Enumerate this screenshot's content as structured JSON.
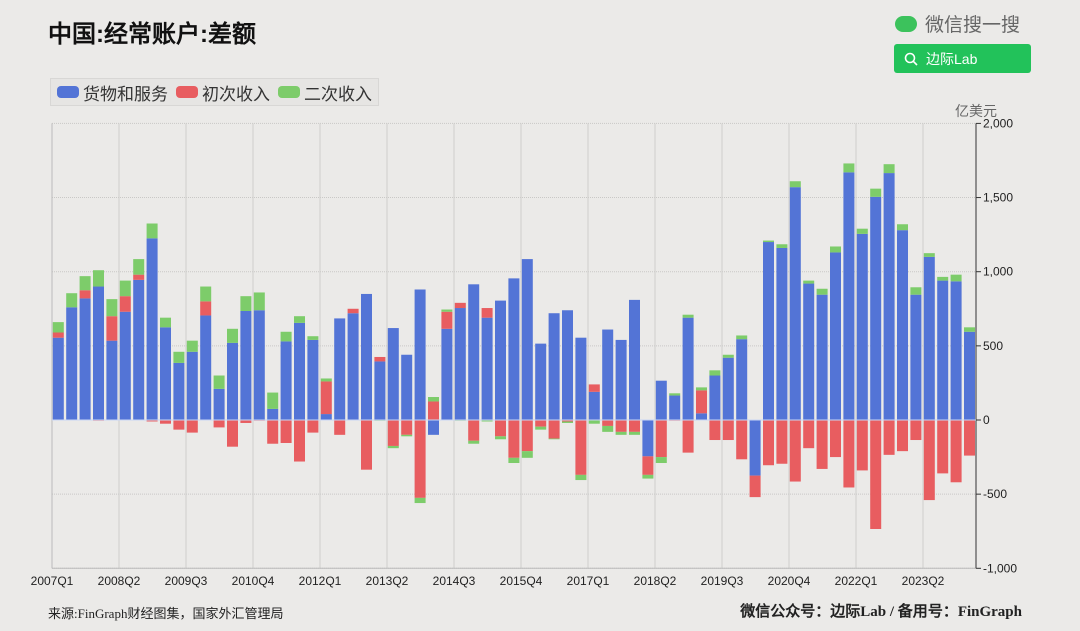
{
  "header": {
    "title": "中国:经常账户:差额"
  },
  "watermark": {
    "wechat_label": "微信搜一搜",
    "search_label": "边际Lab",
    "icon": "wechat-icon"
  },
  "footer": {
    "source": "来源:FinGraph财经图集，国家外汇管理局",
    "account": "微信公众号：边际Lab / 备用号：FinGraph"
  },
  "chart_data": {
    "type": "bar",
    "stacked": true,
    "title": "中国:经常账户:差额",
    "unit": "亿美元",
    "ylim": [
      -1000,
      2000
    ],
    "yticks": [
      "2,000",
      "1,500",
      "1,000",
      "500",
      "0",
      "-500",
      "-1,000"
    ],
    "ytick_values": [
      2000,
      1500,
      1000,
      500,
      0,
      -500,
      -1000
    ],
    "xtick_labels": [
      "2007Q1",
      "2008Q2",
      "2009Q3",
      "2010Q4",
      "2012Q1",
      "2013Q2",
      "2014Q3",
      "2015Q4",
      "2017Q1",
      "2018Q2",
      "2019Q3",
      "2020Q4",
      "2022Q1",
      "2023Q2"
    ],
    "grid": true,
    "legend_position": "top-left",
    "categories_start": "2007Q1",
    "categories_end": "2024Q1",
    "series": [
      {
        "name": "货物和服务",
        "color": "#5374d6",
        "values": [
          555,
          760,
          820,
          900,
          535,
          730,
          945,
          1225,
          625,
          385,
          460,
          705,
          210,
          520,
          735,
          740,
          75,
          530,
          655,
          540,
          40,
          685,
          720,
          850,
          395,
          620,
          440,
          880,
          -100,
          615,
          755,
          915,
          690,
          805,
          955,
          1085,
          515,
          720,
          740,
          555,
          190,
          610,
          540,
          810,
          -245,
          265,
          165,
          690,
          45,
          300,
          420,
          545,
          -375,
          1200,
          1160,
          1570,
          920,
          845,
          1130,
          1670,
          1255,
          1505,
          1665,
          1280,
          845,
          1100,
          940,
          935,
          595
        ]
      },
      {
        "name": "初次收入",
        "color": "#e85d60",
        "values": [
          35,
          0,
          55,
          -5,
          165,
          105,
          35,
          -10,
          -25,
          -65,
          -85,
          95,
          -50,
          -180,
          -20,
          -5,
          -160,
          -155,
          -280,
          -85,
          220,
          -100,
          30,
          -335,
          30,
          -175,
          -100,
          -525,
          125,
          115,
          35,
          -140,
          65,
          -110,
          -255,
          -210,
          -45,
          -125,
          -10,
          -370,
          50,
          -40,
          -80,
          -80,
          -125,
          -250,
          -5,
          -220,
          155,
          -135,
          -135,
          -265,
          -145,
          -305,
          -295,
          -415,
          -190,
          -330,
          -250,
          -455,
          -340,
          -735,
          -235,
          -210,
          -135,
          -540,
          -360,
          -420,
          -240
        ]
      },
      {
        "name": "二次收入",
        "color": "#7dcc6a",
        "values": [
          70,
          95,
          95,
          110,
          115,
          105,
          105,
          100,
          65,
          75,
          75,
          100,
          90,
          95,
          100,
          120,
          110,
          65,
          45,
          25,
          20,
          0,
          0,
          0,
          -5,
          -15,
          -10,
          -35,
          30,
          15,
          -5,
          -20,
          -10,
          -20,
          -35,
          -45,
          -20,
          -5,
          -10,
          -35,
          -25,
          -40,
          -20,
          -20,
          -25,
          -40,
          15,
          20,
          20,
          35,
          20,
          25,
          0,
          10,
          25,
          40,
          20,
          40,
          40,
          60,
          35,
          55,
          60,
          40,
          50,
          25,
          25,
          45,
          30
        ]
      }
    ]
  }
}
